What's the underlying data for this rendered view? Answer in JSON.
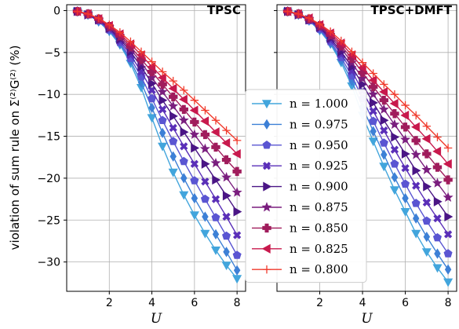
{
  "chart_data": {
    "type": "line",
    "ylabel": "violation of sum rule on Σ⁽²⁾G⁽²⁾ (%)",
    "legend_position": "center-right",
    "grid": true,
    "x_ticks": [
      2,
      4,
      6,
      8
    ],
    "y_ticks": [
      0,
      -5,
      -10,
      -15,
      -20,
      -25,
      -30
    ],
    "panels": [
      {
        "title": "TPSC",
        "xlabel": "U",
        "xlim": [
          0,
          8.4
        ],
        "ylim": [
          -33.5,
          0.7
        ],
        "x": [
          0.5,
          1,
          1.5,
          2,
          2.5,
          3,
          3.5,
          4,
          4.5,
          5,
          5.5,
          6,
          6.5,
          7,
          7.5,
          8
        ],
        "series": [
          {
            "name": "n = 1.000",
            "color": "#42a5dc",
            "marker": "tri_down",
            "values": [
              -0.1,
              -0.5,
              -1.3,
              -2.5,
              -4.1,
              -6.3,
              -9.2,
              -12.8,
              -16.2,
              -19.3,
              -22.0,
              -24.4,
              -26.6,
              -28.6,
              -30.4,
              -32.0
            ]
          },
          {
            "name": "n = 0.975",
            "color": "#3d80d6",
            "marker": "diamond",
            "values": [
              -0.1,
              -0.5,
              -1.3,
              -2.4,
              -4.0,
              -6.0,
              -8.6,
              -11.6,
              -14.6,
              -17.4,
              -20.0,
              -22.4,
              -24.6,
              -26.7,
              -28.8,
              -31.0
            ]
          },
          {
            "name": "n = 0.950",
            "color": "#5a55d2",
            "marker": "pentagon",
            "values": [
              -0.1,
              -0.5,
              -1.2,
              -2.3,
              -3.8,
              -5.7,
              -7.9,
              -10.5,
              -13.1,
              -15.6,
              -18.0,
              -20.3,
              -22.5,
              -24.7,
              -26.9,
              -29.2
            ]
          },
          {
            "name": "n = 0.925",
            "color": "#5a2fb8",
            "marker": "x",
            "values": [
              -0.1,
              -0.5,
              -1.2,
              -2.2,
              -3.6,
              -5.3,
              -7.3,
              -9.5,
              -11.8,
              -14.0,
              -16.2,
              -18.3,
              -20.4,
              -22.5,
              -24.6,
              -26.8
            ]
          },
          {
            "name": "n = 0.900",
            "color": "#4a1585",
            "marker": "tri_right",
            "values": [
              -0.1,
              -0.5,
              -1.1,
              -2.1,
              -3.4,
              -4.9,
              -6.7,
              -8.7,
              -10.7,
              -12.6,
              -14.5,
              -16.4,
              -18.3,
              -20.2,
              -22.1,
              -24.0
            ]
          },
          {
            "name": "n = 0.875",
            "color": "#7a1e7e",
            "marker": "star",
            "values": [
              -0.1,
              -0.4,
              -1.1,
              -2.0,
              -3.2,
              -4.6,
              -6.2,
              -8.0,
              -9.7,
              -11.4,
              -13.1,
              -14.8,
              -16.5,
              -18.2,
              -19.9,
              -21.7
            ]
          },
          {
            "name": "n = 0.850",
            "color": "#a01c5c",
            "marker": "plus_filled",
            "values": [
              -0.1,
              -0.4,
              -1.0,
              -1.9,
              -3.0,
              -4.3,
              -5.8,
              -7.3,
              -8.8,
              -10.3,
              -11.8,
              -13.3,
              -14.8,
              -16.3,
              -17.8,
              -19.2
            ]
          },
          {
            "name": "n = 0.825",
            "color": "#c8194d",
            "marker": "tri_left",
            "values": [
              -0.1,
              -0.4,
              -1.0,
              -1.8,
              -2.8,
              -4.0,
              -5.3,
              -6.7,
              -8.0,
              -9.3,
              -10.6,
              -11.9,
              -13.2,
              -14.5,
              -15.8,
              -17.1
            ]
          },
          {
            "name": "n = 0.800",
            "color": "#f03a2c",
            "marker": "plus",
            "values": [
              -0.1,
              -0.4,
              -0.9,
              -1.7,
              -2.6,
              -3.7,
              -4.9,
              -6.1,
              -7.3,
              -8.4,
              -9.5,
              -10.7,
              -11.9,
              -13.1,
              -14.3,
              -15.5
            ]
          }
        ]
      },
      {
        "title": "TPSC+DMFT",
        "xlabel": "U",
        "xlim": [
          0,
          8.4
        ],
        "ylim": [
          -33.5,
          0.7
        ],
        "x": [
          0.5,
          1,
          1.5,
          2,
          2.5,
          3,
          3.5,
          4,
          4.5,
          5,
          5.5,
          6,
          6.5,
          7,
          7.5,
          8
        ],
        "series": [
          {
            "name": "n = 1.000",
            "color": "#42a5dc",
            "marker": "tri_down",
            "values": [
              -0.1,
              -0.5,
              -1.2,
              -2.4,
              -4.0,
              -6.2,
              -9.0,
              -12.5,
              -15.6,
              -18.6,
              -21.4,
              -24.0,
              -26.6,
              -28.8,
              -30.7,
              -32.4
            ]
          },
          {
            "name": "n = 0.975",
            "color": "#3d80d6",
            "marker": "diamond",
            "values": [
              -0.1,
              -0.5,
              -1.2,
              -2.3,
              -3.9,
              -5.9,
              -8.4,
              -11.5,
              -14.4,
              -17.2,
              -19.9,
              -22.4,
              -24.8,
              -27.0,
              -29.0,
              -30.9
            ]
          },
          {
            "name": "n = 0.950",
            "color": "#5a55d2",
            "marker": "pentagon",
            "values": [
              -0.1,
              -0.5,
              -1.2,
              -2.2,
              -3.7,
              -5.6,
              -7.8,
              -10.5,
              -13.2,
              -15.8,
              -18.3,
              -20.7,
              -23.0,
              -25.1,
              -27.1,
              -29.0
            ]
          },
          {
            "name": "n = 0.925",
            "color": "#5a2fb8",
            "marker": "x",
            "values": [
              -0.1,
              -0.5,
              -1.1,
              -2.1,
              -3.5,
              -5.2,
              -7.2,
              -9.6,
              -12.0,
              -14.3,
              -16.6,
              -18.8,
              -20.9,
              -22.9,
              -24.8,
              -26.7
            ]
          },
          {
            "name": "n = 0.900",
            "color": "#4a1585",
            "marker": "tri_right",
            "values": [
              -0.1,
              -0.5,
              -1.1,
              -2.0,
              -3.3,
              -4.9,
              -6.7,
              -8.8,
              -11.0,
              -13.1,
              -15.1,
              -17.1,
              -19.1,
              -21.0,
              -22.8,
              -24.6
            ]
          },
          {
            "name": "n = 0.875",
            "color": "#7a1e7e",
            "marker": "star",
            "values": [
              -0.1,
              -0.4,
              -1.0,
              -1.9,
              -3.1,
              -4.5,
              -6.2,
              -8.1,
              -10.0,
              -11.8,
              -13.6,
              -15.4,
              -17.2,
              -19.0,
              -20.6,
              -22.3
            ]
          },
          {
            "name": "n = 0.850",
            "color": "#a01c5c",
            "marker": "plus_filled",
            "values": [
              -0.1,
              -0.4,
              -1.0,
              -1.8,
              -2.9,
              -4.2,
              -5.7,
              -7.4,
              -9.1,
              -10.7,
              -12.3,
              -13.9,
              -15.5,
              -17.1,
              -18.7,
              -20.2
            ]
          },
          {
            "name": "n = 0.825",
            "color": "#c8194d",
            "marker": "tri_left",
            "values": [
              -0.1,
              -0.4,
              -0.9,
              -1.7,
              -2.7,
              -3.9,
              -5.3,
              -6.8,
              -8.3,
              -9.7,
              -11.1,
              -12.5,
              -13.9,
              -15.3,
              -16.8,
              -18.3
            ]
          },
          {
            "name": "n = 0.800",
            "color": "#f03a2c",
            "marker": "plus",
            "values": [
              -0.1,
              -0.4,
              -0.9,
              -1.6,
              -2.5,
              -3.6,
              -4.9,
              -6.2,
              -7.5,
              -8.8,
              -10.0,
              -11.3,
              -12.5,
              -13.8,
              -15.1,
              -16.4
            ]
          }
        ]
      }
    ]
  }
}
